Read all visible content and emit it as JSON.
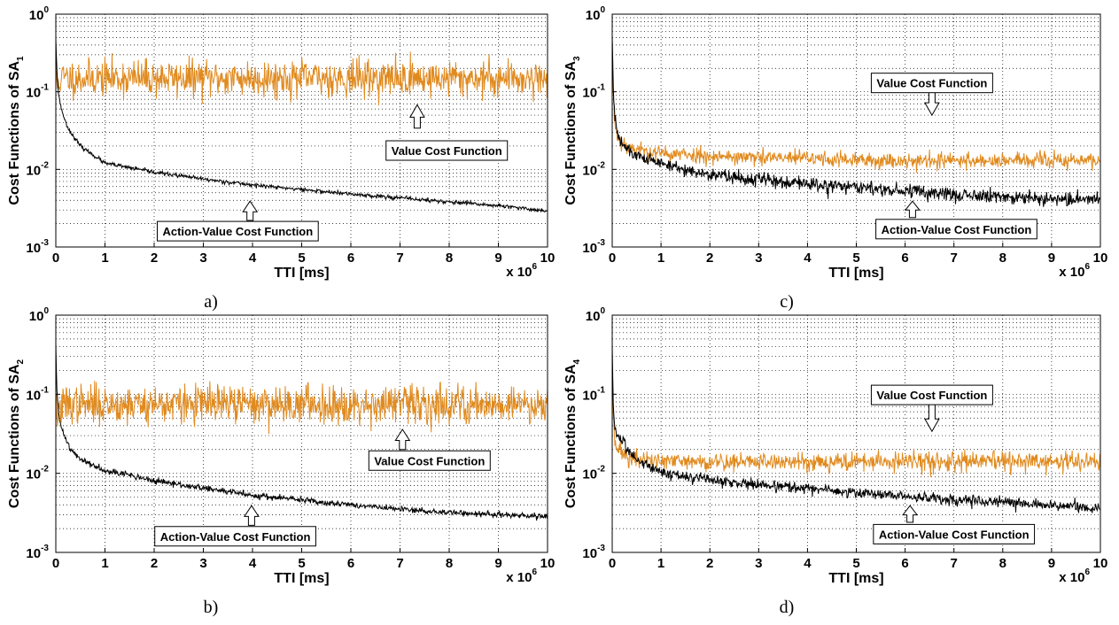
{
  "chart_data": [
    {
      "type": "line",
      "panel": "a)",
      "ylabel": "Cost Functions of SA",
      "ylabel_sub": "1",
      "xlabel": "TTI [ms]",
      "x_multiplier": {
        "base": "x 10",
        "exp": "6"
      },
      "xlim": [
        0,
        10
      ],
      "ylim": [
        0.001,
        1
      ],
      "yscale": "log",
      "grid": true,
      "xticks": [
        "0",
        "1",
        "2",
        "3",
        "4",
        "5",
        "6",
        "7",
        "8",
        "9",
        "10"
      ],
      "yticks": [
        {
          "base": "10",
          "exp": "-3",
          "value": 0.001
        },
        {
          "base": "10",
          "exp": "-2",
          "value": 0.01
        },
        {
          "base": "10",
          "exp": "-1",
          "value": 0.1
        },
        {
          "base": "10",
          "exp": "0",
          "value": 1
        }
      ],
      "series": [
        {
          "color": "#E08A1E",
          "noisy": true,
          "noise": 0.27,
          "seed": 11,
          "x": [
            0,
            0.02,
            0.1,
            1,
            2,
            3,
            4,
            5,
            6,
            7,
            8,
            9,
            10
          ],
          "y": [
            0.15,
            0.12,
            0.15,
            0.15,
            0.15,
            0.15,
            0.15,
            0.15,
            0.15,
            0.15,
            0.15,
            0.15,
            0.15
          ]
        },
        {
          "color": "#000000",
          "noisy": true,
          "noise": 0.03,
          "seed": 23,
          "x": [
            0,
            0.02,
            0.05,
            0.1,
            0.2,
            0.3,
            0.5,
            1,
            1.5,
            2,
            3,
            4,
            5,
            6,
            7,
            8,
            9,
            10
          ],
          "y": [
            0.5,
            0.2,
            0.1,
            0.065,
            0.04,
            0.03,
            0.02,
            0.012,
            0.0105,
            0.0092,
            0.0075,
            0.0063,
            0.0055,
            0.0048,
            0.0043,
            0.0038,
            0.0034,
            0.0029
          ]
        }
      ],
      "annotations": [
        {
          "text": "Value Cost Function",
          "box_x": 7.95,
          "box_y": 0.0175,
          "arrow_x": 7.35,
          "arrow_from": 0.034,
          "arrow_to": 0.068
        },
        {
          "text": "Action-Value Cost Function",
          "box_x": 3.7,
          "box_y": 0.0016,
          "arrow_x": 3.95,
          "arrow_from": 0.0022,
          "arrow_to": 0.0039
        }
      ]
    },
    {
      "type": "line",
      "panel": "b)",
      "ylabel": "Cost Functions of SA",
      "ylabel_sub": "2",
      "xlabel": "TTI [ms]",
      "x_multiplier": {
        "base": "x 10",
        "exp": "6"
      },
      "xlim": [
        0,
        10
      ],
      "ylim": [
        0.001,
        1
      ],
      "yscale": "log",
      "grid": true,
      "xticks": [
        "0",
        "1",
        "2",
        "3",
        "4",
        "5",
        "6",
        "7",
        "8",
        "9",
        "10"
      ],
      "yticks": [
        {
          "base": "10",
          "exp": "-3",
          "value": 0.001
        },
        {
          "base": "10",
          "exp": "-2",
          "value": 0.01
        },
        {
          "base": "10",
          "exp": "-1",
          "value": 0.1
        },
        {
          "base": "10",
          "exp": "0",
          "value": 1
        }
      ],
      "series": [
        {
          "color": "#E08A1E",
          "noisy": true,
          "noise": 0.28,
          "seed": 37,
          "x": [
            0,
            0.05,
            0.2,
            1,
            2,
            3,
            4,
            5,
            6,
            7,
            8,
            9,
            10
          ],
          "y": [
            0.06,
            0.06,
            0.075,
            0.075,
            0.075,
            0.075,
            0.075,
            0.075,
            0.075,
            0.075,
            0.075,
            0.075,
            0.075
          ]
        },
        {
          "color": "#000000",
          "noisy": true,
          "noise": 0.045,
          "seed": 41,
          "x": [
            0,
            0.02,
            0.05,
            0.1,
            0.2,
            0.3,
            0.5,
            1,
            1.5,
            2,
            3,
            4,
            5,
            6,
            7,
            8,
            9,
            10
          ],
          "y": [
            0.4,
            0.12,
            0.06,
            0.04,
            0.028,
            0.02,
            0.015,
            0.011,
            0.0095,
            0.008,
            0.0065,
            0.0053,
            0.0046,
            0.004,
            0.0035,
            0.0032,
            0.003,
            0.0028
          ]
        }
      ],
      "annotations": [
        {
          "text": "Value Cost Function",
          "box_x": 7.6,
          "box_y": 0.0145,
          "arrow_x": 7.05,
          "arrow_from": 0.02,
          "arrow_to": 0.036
        },
        {
          "text": "Action-Value Cost Function",
          "box_x": 3.65,
          "box_y": 0.0016,
          "arrow_x": 3.98,
          "arrow_from": 0.0022,
          "arrow_to": 0.0039
        }
      ]
    },
    {
      "type": "line",
      "panel": "c)",
      "ylabel": "Cost Functions of SA",
      "ylabel_sub": "3",
      "xlabel": "TTI [ms]",
      "x_multiplier": {
        "base": "x 10",
        "exp": "6"
      },
      "xlim": [
        0,
        10
      ],
      "ylim": [
        0.001,
        1
      ],
      "yscale": "log",
      "grid": true,
      "xticks": [
        "0",
        "1",
        "2",
        "3",
        "4",
        "5",
        "6",
        "7",
        "8",
        "9",
        "10"
      ],
      "yticks": [
        {
          "base": "10",
          "exp": "-3",
          "value": 0.001
        },
        {
          "base": "10",
          "exp": "-2",
          "value": 0.01
        },
        {
          "base": "10",
          "exp": "-1",
          "value": 0.1
        },
        {
          "base": "10",
          "exp": "0",
          "value": 1
        }
      ],
      "series": [
        {
          "color": "#E08A1E",
          "noisy": true,
          "noise": 0.12,
          "seed": 53,
          "x": [
            0,
            0.02,
            0.05,
            0.1,
            0.2,
            0.3,
            0.5,
            1,
            2,
            3,
            4,
            5,
            6,
            7,
            8,
            9,
            10
          ],
          "y": [
            0.4,
            0.1,
            0.04,
            0.028,
            0.022,
            0.02,
            0.018,
            0.016,
            0.015,
            0.014,
            0.014,
            0.013,
            0.013,
            0.013,
            0.013,
            0.013,
            0.013
          ]
        },
        {
          "color": "#000000",
          "noisy": true,
          "noise": 0.1,
          "seed": 61,
          "x": [
            0,
            0.02,
            0.05,
            0.1,
            0.2,
            0.3,
            0.5,
            1,
            1.5,
            2,
            3,
            4,
            5,
            6,
            7,
            8,
            9,
            10
          ],
          "y": [
            0.5,
            0.12,
            0.05,
            0.03,
            0.022,
            0.018,
            0.015,
            0.012,
            0.01,
            0.0085,
            0.0075,
            0.0065,
            0.0058,
            0.0052,
            0.0048,
            0.0045,
            0.0042,
            0.004
          ]
        }
      ],
      "annotations": [
        {
          "text": "Value Cost Function",
          "box_x": 6.55,
          "box_y": 0.13,
          "arrow_x": 6.55,
          "arrow_from": 0.1,
          "arrow_to": 0.05
        },
        {
          "text": "Action-Value Cost Function",
          "box_x": 7.05,
          "box_y": 0.0017,
          "arrow_x": 6.15,
          "arrow_from": 0.0024,
          "arrow_to": 0.0039
        }
      ]
    },
    {
      "type": "line",
      "panel": "d)",
      "ylabel": "Cost Functions of SA",
      "ylabel_sub": "4",
      "xlabel": "TTI [ms]",
      "x_multiplier": {
        "base": "x 10",
        "exp": "6"
      },
      "xlim": [
        0,
        10
      ],
      "ylim": [
        0.001,
        1
      ],
      "yscale": "log",
      "grid": true,
      "xticks": [
        "0",
        "1",
        "2",
        "3",
        "4",
        "5",
        "6",
        "7",
        "8",
        "9",
        "10"
      ],
      "yticks": [
        {
          "base": "10",
          "exp": "-3",
          "value": 0.001
        },
        {
          "base": "10",
          "exp": "-2",
          "value": 0.01
        },
        {
          "base": "10",
          "exp": "-1",
          "value": 0.1
        },
        {
          "base": "10",
          "exp": "0",
          "value": 1
        }
      ],
      "series": [
        {
          "color": "#E08A1E",
          "noisy": true,
          "noise": 0.14,
          "seed": 71,
          "x": [
            0,
            0.02,
            0.05,
            0.1,
            0.2,
            0.3,
            0.5,
            1,
            2,
            3,
            4,
            5,
            6,
            7,
            8,
            9,
            10
          ],
          "y": [
            0.2,
            0.06,
            0.03,
            0.022,
            0.018,
            0.016,
            0.015,
            0.014,
            0.014,
            0.014,
            0.014,
            0.014,
            0.014,
            0.014,
            0.014,
            0.014,
            0.014
          ]
        },
        {
          "color": "#000000",
          "noisy": true,
          "noise": 0.08,
          "seed": 83,
          "x": [
            0,
            0.02,
            0.05,
            0.1,
            0.2,
            0.3,
            0.5,
            1,
            1.5,
            2,
            3,
            4,
            5,
            6,
            7,
            8,
            9,
            10
          ],
          "y": [
            0.4,
            0.08,
            0.04,
            0.03,
            0.025,
            0.02,
            0.015,
            0.0105,
            0.009,
            0.0082,
            0.0072,
            0.0064,
            0.0057,
            0.0051,
            0.0047,
            0.0043,
            0.0039,
            0.0036
          ]
        }
      ],
      "annotations": [
        {
          "text": "Value Cost Function",
          "box_x": 6.55,
          "box_y": 0.098,
          "arrow_x": 6.55,
          "arrow_from": 0.075,
          "arrow_to": 0.034
        },
        {
          "text": "Action-Value Cost Function",
          "box_x": 7.0,
          "box_y": 0.0017,
          "arrow_x": 6.1,
          "arrow_from": 0.0024,
          "arrow_to": 0.0039
        }
      ]
    }
  ]
}
